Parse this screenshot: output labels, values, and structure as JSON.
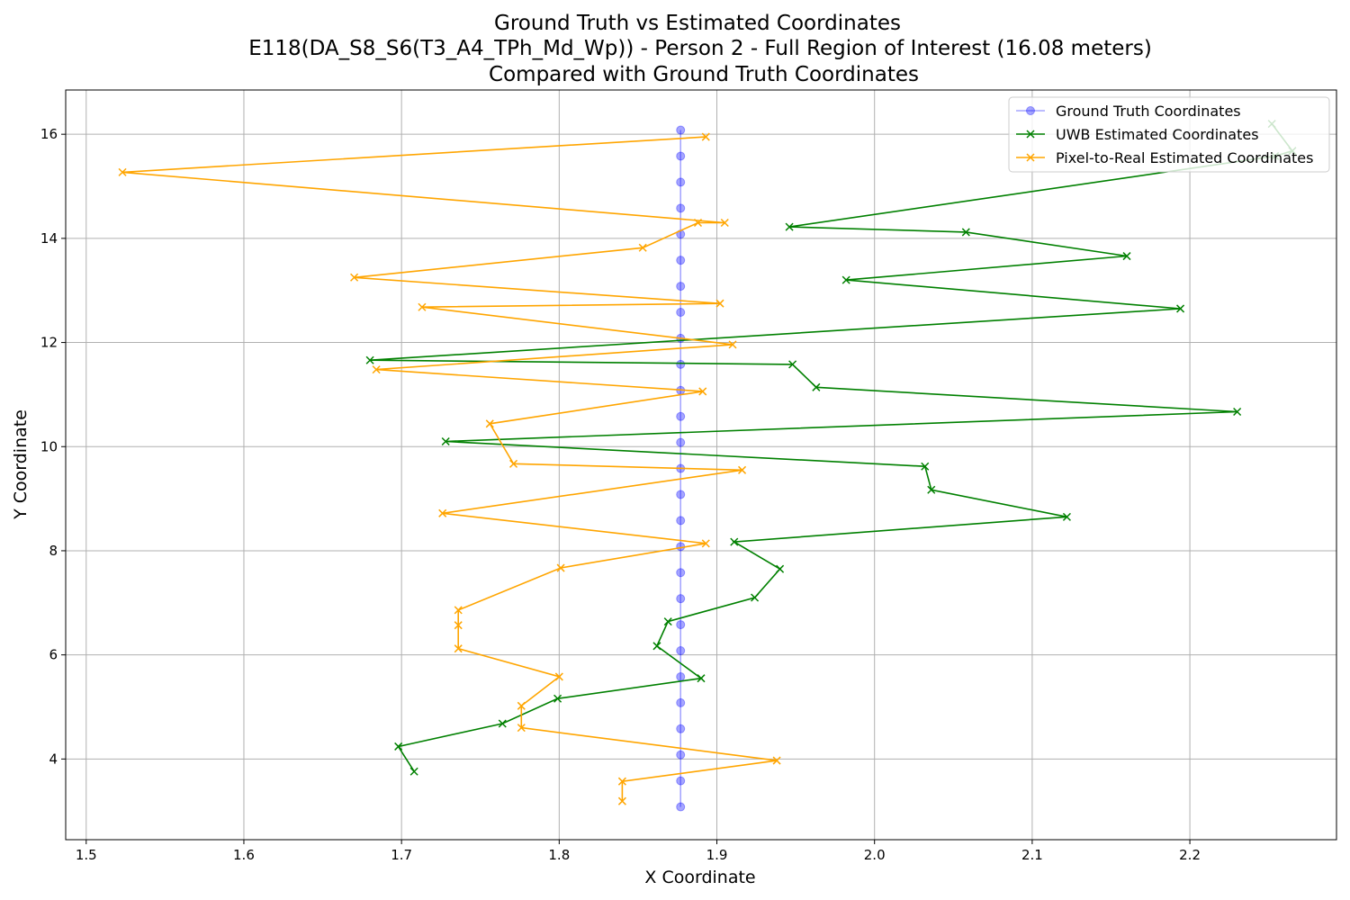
{
  "chart_data": {
    "type": "line",
    "title_lines": [
      "Ground Truth vs Estimated Coordinates",
      "E118(DA_S8_S6(T3_A4_TPh_Md_Wp)) - Person 2 - Full Region of Interest (16.08 meters)",
      "Compared with Ground Truth Coordinates"
    ],
    "xlabel": "X Coordinate",
    "ylabel": "Y Coordinate",
    "xlim": [
      1.487,
      2.293
    ],
    "ylim": [
      2.45,
      16.85
    ],
    "xticks": [
      1.5,
      1.6,
      1.7,
      1.8,
      1.9,
      2.0,
      2.1,
      2.2
    ],
    "xtick_labels": [
      "1.5",
      "1.6",
      "1.7",
      "1.8",
      "1.9",
      "2.0",
      "2.1",
      "2.2"
    ],
    "yticks": [
      4,
      6,
      8,
      10,
      12,
      14,
      16
    ],
    "ytick_labels": [
      "4",
      "6",
      "8",
      "10",
      "12",
      "14",
      "16"
    ],
    "grid": true,
    "legend_position": "top-right",
    "series": [
      {
        "name": "Ground Truth Coordinates",
        "color": "#0000ff",
        "marker": "circle",
        "x": [
          1.877,
          1.877,
          1.877,
          1.877,
          1.877,
          1.877,
          1.877,
          1.877,
          1.877,
          1.877,
          1.877,
          1.877,
          1.877,
          1.877,
          1.877,
          1.877,
          1.877,
          1.877,
          1.877,
          1.877,
          1.877,
          1.877,
          1.877,
          1.877,
          1.877,
          1.877,
          1.877
        ],
        "y": [
          3.08,
          3.58,
          4.08,
          4.58,
          5.08,
          5.58,
          6.08,
          6.58,
          7.08,
          7.58,
          8.08,
          8.58,
          9.08,
          9.58,
          10.08,
          10.58,
          11.08,
          11.58,
          12.08,
          12.58,
          13.08,
          13.58,
          14.08,
          14.58,
          15.08,
          15.58,
          16.08
        ]
      },
      {
        "name": "UWB Estimated Coordinates",
        "color": "#008000",
        "marker": "x",
        "x": [
          1.708,
          1.698,
          1.764,
          1.799,
          1.89,
          1.862,
          1.869,
          1.924,
          1.94,
          1.911,
          2.122,
          2.036,
          2.032,
          1.728,
          2.23,
          1.963,
          1.948,
          1.68,
          2.194,
          1.982,
          2.16,
          2.058,
          1.946,
          2.254,
          2.265,
          2.252
        ],
        "y": [
          3.76,
          4.24,
          4.68,
          5.16,
          5.55,
          6.17,
          6.64,
          7.1,
          7.65,
          8.17,
          8.65,
          9.17,
          9.62,
          10.1,
          10.67,
          11.14,
          11.58,
          11.66,
          12.65,
          13.2,
          13.66,
          14.12,
          14.22,
          15.58,
          15.68,
          16.2
        ]
      },
      {
        "name": "Pixel-to-Real Estimated Coordinates",
        "color": "#ffa500",
        "marker": "x",
        "x": [
          1.84,
          1.84,
          1.938,
          1.776,
          1.776,
          1.8,
          1.736,
          1.736,
          1.736,
          1.801,
          1.893,
          1.726,
          1.916,
          1.771,
          1.756,
          1.891,
          1.684,
          1.91,
          1.713,
          1.902,
          1.67,
          1.853,
          1.888,
          1.905,
          1.523,
          1.893
        ],
        "y": [
          3.19,
          3.57,
          3.97,
          4.6,
          5.02,
          5.58,
          6.12,
          6.57,
          6.86,
          7.67,
          8.14,
          8.72,
          9.55,
          9.67,
          10.44,
          11.06,
          11.48,
          11.96,
          12.68,
          12.75,
          13.25,
          13.82,
          14.3,
          14.3,
          15.27,
          15.95
        ]
      }
    ]
  }
}
